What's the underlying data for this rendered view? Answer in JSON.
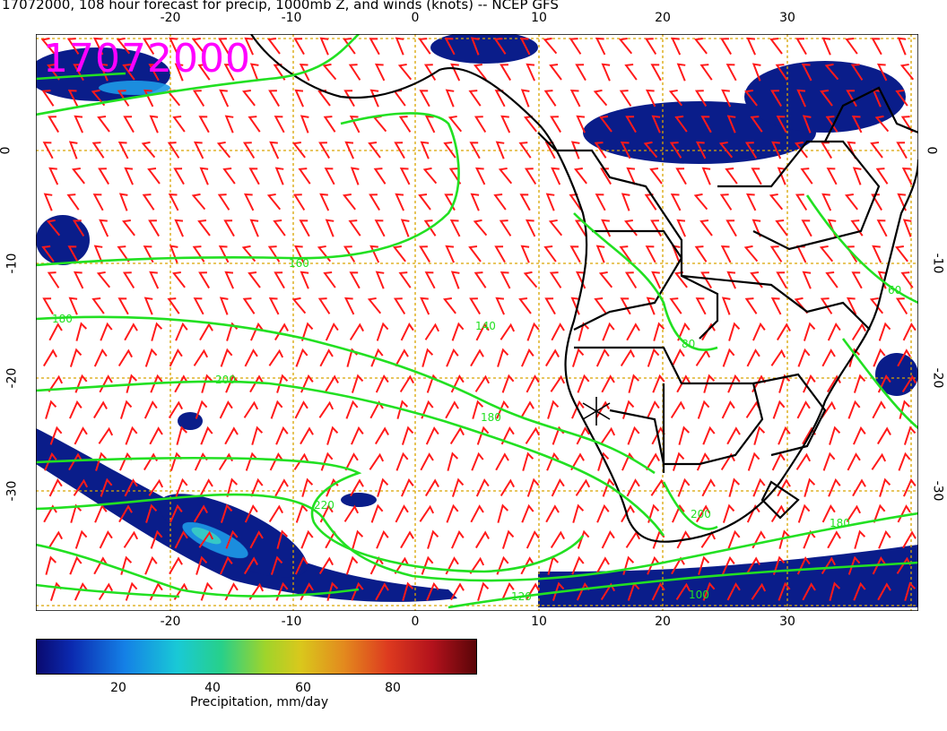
{
  "title": "17072000, 108 hour forecast for precip, 1000mb Z, and winds (knots) -- NCEP GFS",
  "stamp": "17072000",
  "lon_ticks": [
    "-20",
    "-10",
    "0",
    "10",
    "20",
    "30"
  ],
  "lat_ticks": [
    "0",
    "-10",
    "-20",
    "-30"
  ],
  "contour_labels": [
    "160",
    "180",
    "200",
    "220",
    "140",
    "120",
    "100",
    "60",
    "80"
  ],
  "colorbar": {
    "ticks": [
      "20",
      "40",
      "60",
      "80"
    ],
    "label": "Precipitation, mm/day",
    "range": [
      0,
      100
    ]
  },
  "colors": {
    "contour": "#22e022",
    "wind": "#ff1a1a",
    "land_outline": "#000000",
    "precip_dark": "#0a1d8a",
    "grid": "#d9a400",
    "stamp": "#ff00ff"
  },
  "map_extent": {
    "lon": [
      -30,
      40
    ],
    "lat": [
      -40,
      10
    ]
  }
}
